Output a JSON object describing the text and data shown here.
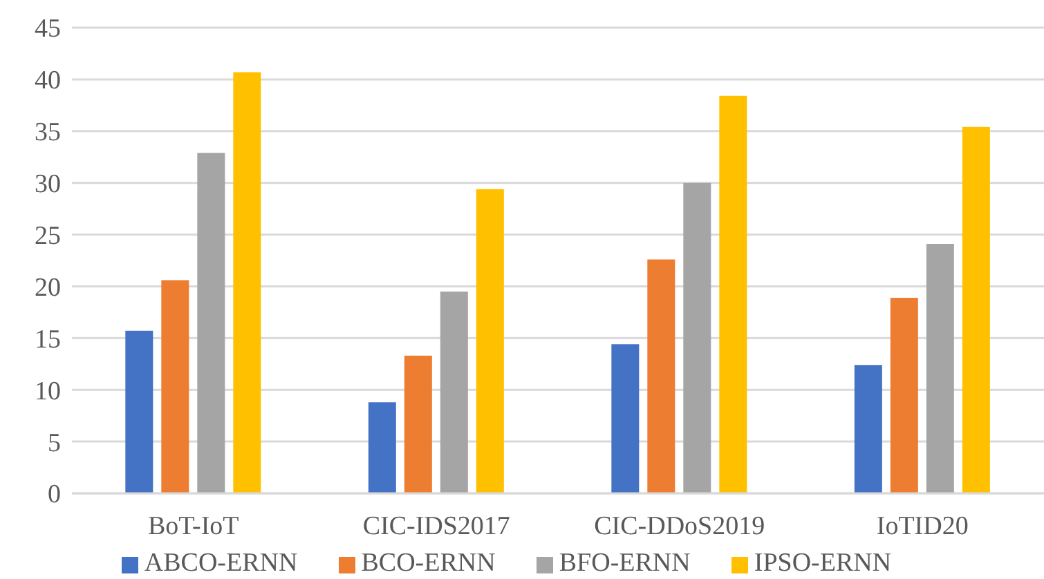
{
  "chart_data": {
    "type": "bar",
    "categories": [
      "BoT-IoT",
      "CIC-IDS2017",
      "CIC-DDoS2019",
      "IoTID20"
    ],
    "series": [
      {
        "name": "ABCO-ERNN",
        "color": "#4472c4",
        "values": [
          15.7,
          8.8,
          14.4,
          12.4
        ]
      },
      {
        "name": "BCO-ERNN",
        "color": "#ed7d31",
        "values": [
          20.6,
          13.3,
          22.6,
          18.9
        ]
      },
      {
        "name": "BFO-ERNN",
        "color": "#a5a5a5",
        "values": [
          32.9,
          19.5,
          30.0,
          24.1
        ]
      },
      {
        "name": "IPSO-ERNN",
        "color": "#ffc000",
        "values": [
          40.7,
          29.4,
          38.4,
          35.4
        ]
      }
    ],
    "ylim": [
      0,
      45
    ],
    "yticks": [
      0,
      5,
      10,
      15,
      20,
      25,
      30,
      35,
      40,
      45
    ],
    "grid": "y",
    "legend": "bottom"
  }
}
